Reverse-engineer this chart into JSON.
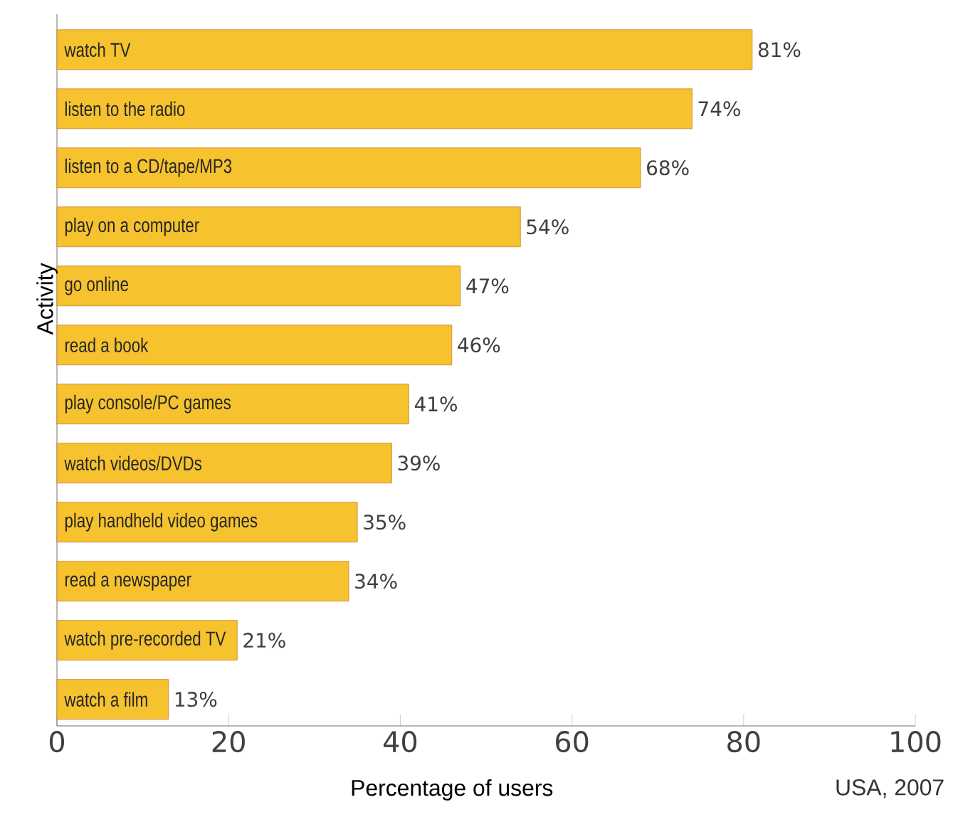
{
  "chart_data": {
    "type": "bar",
    "orientation": "horizontal",
    "categories": [
      "watch TV",
      "listen to the radio",
      "listen to a CD/tape/MP3",
      "play on a computer",
      "go online",
      "read a book",
      "play console/PC games",
      "watch videos/DVDs",
      "play handheld video games",
      "read a newspaper",
      "watch pre-recorded TV",
      "watch a film"
    ],
    "values": [
      81,
      74,
      68,
      54,
      47,
      46,
      41,
      39,
      35,
      34,
      21,
      13
    ],
    "value_labels": [
      "81%",
      "74%",
      "68%",
      "54%",
      "47%",
      "46%",
      "41%",
      "39%",
      "35%",
      "34%",
      "21%",
      "13%"
    ],
    "color": "#f6c22e",
    "xlim": [
      0,
      100
    ],
    "xticks": [
      0,
      20,
      40,
      60,
      80,
      100
    ],
    "xlabel": "Percentage of users",
    "ylabel": "Activity",
    "annotations": [
      "USA, 2007"
    ]
  }
}
